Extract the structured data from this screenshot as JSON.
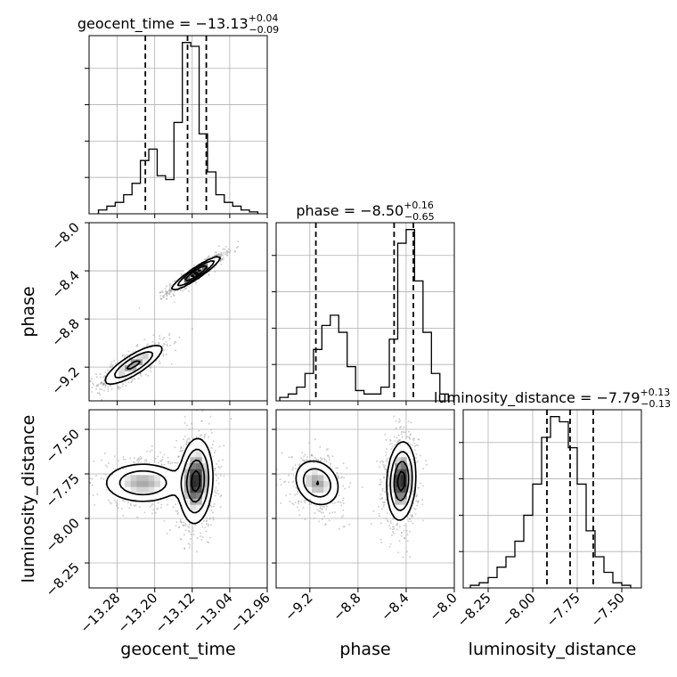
{
  "chart_data": {
    "type": "corner",
    "parameters": [
      {
        "name": "geocent_time",
        "range": [
          -13.34,
          -12.96
        ]
      },
      {
        "name": "phase",
        "range": [
          -9.48,
          -8.0
        ]
      },
      {
        "name": "luminosity_distance",
        "range": [
          -8.39,
          -7.39
        ]
      }
    ],
    "titles": [
      {
        "prefix": "geocent_time = ",
        "value": "−13.13",
        "plus": "+0.04",
        "minus": "−0.09"
      },
      {
        "prefix": "phase = ",
        "value": "−8.50",
        "plus": "+0.16",
        "minus": "−0.65"
      },
      {
        "prefix": "luminosity_distance = ",
        "value": "−7.79",
        "plus": "+0.13",
        "minus": "−0.13"
      }
    ],
    "axis_labels": {
      "x": [
        "geocent_time",
        "phase",
        "luminosity_distance"
      ],
      "y": [
        "phase",
        "luminosity_distance"
      ]
    },
    "ticks": {
      "geocent_time": {
        "values": [
          -13.28,
          -13.2,
          -13.12,
          -13.04,
          -12.96
        ],
        "labels": [
          "−13.28",
          "−13.20",
          "−13.12",
          "−13.04",
          "−12.96"
        ]
      },
      "phase": {
        "values": [
          -9.2,
          -8.8,
          -8.4,
          -8.0
        ],
        "labels": [
          "−9.2",
          "−8.8",
          "−8.4",
          "−8.0"
        ]
      },
      "luminosity_distance": {
        "values": [
          -8.25,
          -8.0,
          -7.75,
          -7.5
        ],
        "labels": [
          "−8.25",
          "−8.00",
          "−7.75",
          "−7.50"
        ]
      }
    },
    "quantiles": {
      "geocent_time": [
        -13.22,
        -13.13,
        -13.09
      ],
      "phase": [
        -9.15,
        -8.5,
        -8.34
      ],
      "luminosity_distance": [
        -7.92,
        -7.79,
        -7.66
      ]
    },
    "histograms": {
      "geocent_time": [
        1,
        2,
        3,
        5,
        8,
        14,
        17,
        10,
        9,
        24,
        45,
        44,
        21,
        11,
        5,
        3,
        2,
        1,
        0.5
      ],
      "phase": [
        1,
        2,
        4,
        8,
        15,
        22,
        25,
        20,
        10,
        3,
        2,
        2,
        4,
        18,
        46,
        50,
        35,
        20,
        8,
        2
      ],
      "luminosity_distance": [
        0.5,
        1,
        2,
        4,
        6,
        9,
        14,
        20,
        29,
        33,
        32,
        27,
        20,
        11,
        6,
        3,
        1,
        0.5
      ]
    },
    "modes": {
      "phase_vs_geocent_time": [
        {
          "center": [
            -13.112,
            -8.42
          ],
          "sd": [
            0.026,
            0.07
          ],
          "rho": 0.93,
          "weight": 0.6
        },
        {
          "center": [
            -13.245,
            -9.18
          ],
          "sd": [
            0.034,
            0.09
          ],
          "rho": 0.82,
          "weight": 0.4
        }
      ],
      "luminosity_distance_vs_geocent_time": [
        {
          "center": [
            -13.112,
            -7.79
          ],
          "sd": [
            0.018,
            0.12
          ],
          "rho": 0.1,
          "weight": 0.62
        },
        {
          "center": [
            -13.225,
            -7.8
          ],
          "sd": [
            0.045,
            0.06
          ],
          "rho": 0.0,
          "weight": 0.38
        }
      ],
      "luminosity_distance_vs_phase": [
        {
          "center": [
            -8.44,
            -7.79
          ],
          "sd": [
            0.06,
            0.11
          ],
          "rho": 0.12,
          "weight": 0.62
        },
        {
          "center": [
            -9.14,
            -7.8
          ],
          "sd": [
            0.1,
            0.07
          ],
          "rho": -0.2,
          "weight": 0.38
        }
      ]
    },
    "contour_levels_sigma": [
      0.5,
      1.0,
      1.5,
      2.0
    ],
    "colors": {
      "line": "#000000",
      "scatter": "#9a9a9a",
      "grid": "#b0b0b0"
    },
    "grid": true
  }
}
